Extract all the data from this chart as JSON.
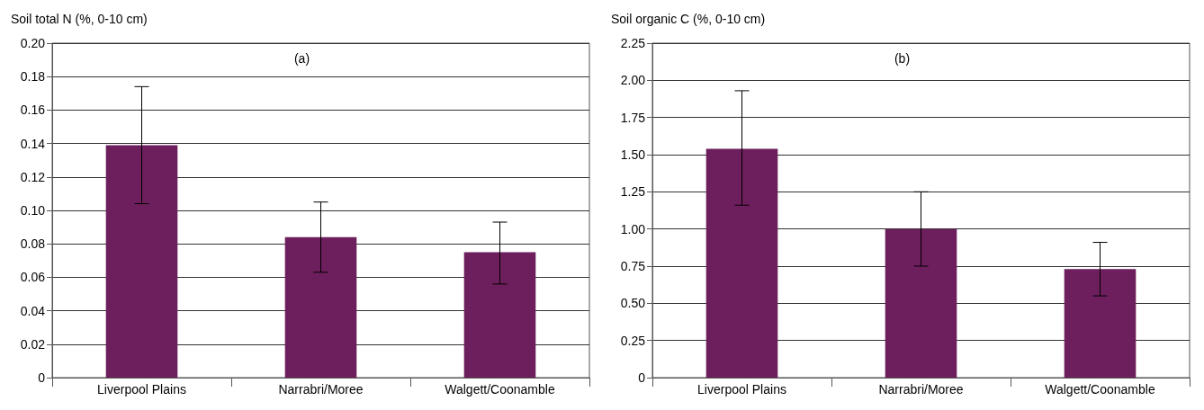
{
  "chart_data": [
    {
      "type": "bar",
      "ylabel": "Soil total N (%, 0-10 cm)",
      "annotations": [
        "(a)"
      ],
      "categories": [
        "Liverpool Plains",
        "Narrabri/Moree",
        "Walgett/Coonamble"
      ],
      "values": [
        0.139,
        0.084,
        0.075
      ],
      "color": "#6d1f5d",
      "errors": [
        [
          0.104,
          0.174
        ],
        [
          0.063,
          0.105
        ],
        [
          0.056,
          0.093
        ]
      ],
      "ylim": [
        0,
        0.2
      ],
      "yticks": [
        0,
        {
          "value": 0.02,
          "label": "0.02"
        },
        {
          "value": 0.04,
          "label": "0.04"
        },
        {
          "value": 0.06,
          "label": "0.06"
        },
        {
          "value": 0.08,
          "label": "0.08"
        },
        {
          "value": 0.1,
          "label": "0.10"
        },
        {
          "value": 0.12,
          "label": "0.12"
        },
        {
          "value": 0.14,
          "label": "0.14"
        },
        {
          "value": 0.16,
          "label": "0.16"
        },
        {
          "value": 0.18,
          "label": "0.18"
        },
        {
          "value": 0.2,
          "label": "0.20"
        }
      ],
      "grid": "y"
    },
    {
      "type": "bar",
      "ylabel": "Soil organic C (%, 0-10 cm)",
      "annotations": [
        "(b)"
      ],
      "categories": [
        "Liverpool Plains",
        "Narrabri/Moree",
        "Walgett/Coonamble"
      ],
      "values": [
        1.54,
        1.0,
        0.73
      ],
      "color": "#6d1f5d",
      "errors": [
        [
          1.16,
          1.93
        ],
        [
          0.75,
          1.25
        ],
        [
          0.55,
          0.91
        ]
      ],
      "ylim": [
        0,
        2.25
      ],
      "yticks": [
        0,
        0.25,
        {
          "value": 0.5,
          "label": "0.50"
        },
        0.75,
        {
          "value": 1,
          "label": "1.00"
        },
        1.25,
        {
          "value": 1.5,
          "label": "1.50"
        },
        1.75,
        {
          "value": 2,
          "label": "2.00"
        },
        2.25
      ],
      "grid": "y"
    }
  ]
}
